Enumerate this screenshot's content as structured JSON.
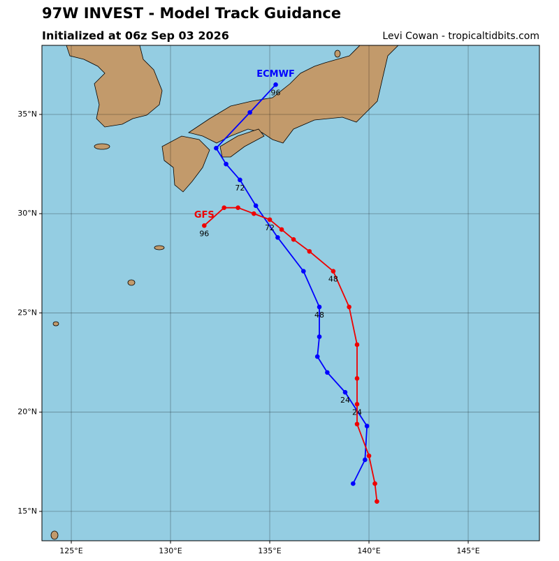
{
  "title": "97W INVEST - Model Track Guidance",
  "subtitle": "Initialized at 06z Sep 03 2026",
  "credit": "Levi Cowan - tropicaltidbits.com",
  "map": {
    "lonlim": [
      123.52,
      148.59
    ],
    "latlim": [
      13.52,
      38.48
    ],
    "lonticks": [
      {
        "value": 125,
        "label": "125°E"
      },
      {
        "value": 130,
        "label": "130°E"
      },
      {
        "value": 135,
        "label": "135°E"
      },
      {
        "value": 140,
        "label": "140°E"
      },
      {
        "value": 145,
        "label": "145°E"
      }
    ],
    "latticks": [
      {
        "value": 15,
        "label": "15°N"
      },
      {
        "value": 20,
        "label": "20°N"
      },
      {
        "value": 25,
        "label": "25°N"
      },
      {
        "value": 30,
        "label": "30°N"
      },
      {
        "value": 35,
        "label": "35°N"
      }
    ],
    "grid": true,
    "tracks": [
      {
        "name": "ECMWF",
        "color": "#0000ff",
        "lon": [
          139.2,
          139.8,
          139.9,
          138.8,
          137.9,
          137.4,
          137.5,
          137.5,
          136.7,
          135.4,
          134.3,
          133.5,
          132.8,
          132.3,
          134.0,
          135.3
        ],
        "lat": [
          16.4,
          17.6,
          19.3,
          21.0,
          22.0,
          22.8,
          23.8,
          25.3,
          27.1,
          28.8,
          30.4,
          31.7,
          32.5,
          33.3,
          35.1,
          36.5
        ],
        "hour_labels": [
          null,
          null,
          null,
          "24",
          null,
          null,
          null,
          "48",
          null,
          null,
          null,
          "72",
          null,
          null,
          null,
          "96"
        ]
      },
      {
        "name": "GFS",
        "color": "#ee0000",
        "lon": [
          140.4,
          140.3,
          140.0,
          139.4,
          139.4,
          139.4,
          139.4,
          139.0,
          138.2,
          137.0,
          136.2,
          135.6,
          135.0,
          134.2,
          133.4,
          132.7,
          131.7
        ],
        "lat": [
          15.5,
          16.4,
          17.8,
          19.4,
          20.4,
          21.7,
          23.4,
          25.3,
          27.1,
          28.1,
          28.7,
          29.2,
          29.7,
          30.0,
          30.3,
          30.3,
          29.4
        ],
        "hour_labels": [
          null,
          null,
          null,
          null,
          "24",
          null,
          null,
          null,
          "48",
          null,
          null,
          null,
          "72",
          null,
          null,
          null,
          "96"
        ]
      }
    ]
  }
}
